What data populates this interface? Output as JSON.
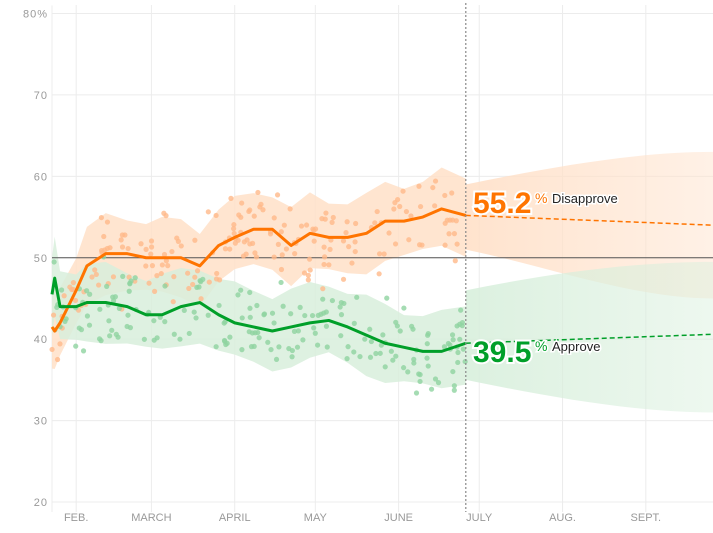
{
  "chart_data": {
    "type": "line",
    "ylim": [
      20,
      80
    ],
    "xlim": [
      "2017-01-23",
      "2017-09-26"
    ],
    "grid": true,
    "y_ticks": [
      "80%",
      "70",
      "60",
      "50",
      "40",
      "30",
      "20"
    ],
    "y_tick_values": [
      80,
      70,
      60,
      50,
      40,
      30,
      20
    ],
    "x_ticks": [
      "FEB.",
      "MARCH",
      "APRIL",
      "MAY",
      "JUNE",
      "JULY",
      "AUG.",
      "SEPT."
    ],
    "x_tick_dates": [
      "2017-02-01",
      "2017-03-01",
      "2017-04-01",
      "2017-05-01",
      "2017-06-01",
      "2017-07-01",
      "2017-08-01",
      "2017-09-01"
    ],
    "today": "2017-06-26",
    "x": [
      "2017-01-23",
      "2017-01-24",
      "2017-01-26",
      "2017-02-01",
      "2017-02-05",
      "2017-02-12",
      "2017-02-20",
      "2017-02-27",
      "2017-03-05",
      "2017-03-12",
      "2017-03-19",
      "2017-03-26",
      "2017-04-01",
      "2017-04-08",
      "2017-04-15",
      "2017-04-22",
      "2017-04-29",
      "2017-05-06",
      "2017-05-13",
      "2017-05-20",
      "2017-05-27",
      "2017-06-03",
      "2017-06-10",
      "2017-06-17",
      "2017-06-26"
    ],
    "series": [
      {
        "name": "Disapprove",
        "color": "#ff7400",
        "values": [
          41.5,
          41,
          42,
          46,
          49,
          50.5,
          50.5,
          50,
          50,
          50,
          49,
          51.5,
          52.5,
          53.5,
          53.5,
          51.5,
          53,
          52.5,
          52.5,
          53,
          54.5,
          54.5,
          55,
          56,
          55.2
        ],
        "band_halfwidth": 4.5,
        "forecast": {
          "end": 54.0,
          "band_start": [
            51,
            59
          ],
          "band_end": [
            45,
            63
          ]
        }
      },
      {
        "name": "Approve",
        "color": "#009f29",
        "values": [
          45.5,
          47.5,
          44,
          44,
          44.5,
          44.5,
          44,
          43,
          43,
          44,
          44.5,
          43,
          42,
          41.5,
          41,
          41.5,
          42,
          42.3,
          41.5,
          40.5,
          39.5,
          39,
          38.5,
          38.5,
          39.5
        ],
        "band_halfwidth": 4.5,
        "forecast": {
          "end": 40.6,
          "band_start": [
            35,
            46
          ],
          "band_end": [
            31,
            49.5
          ]
        }
      }
    ],
    "reference_line": 50,
    "labels": {
      "disapprove": {
        "value": "55.2",
        "unit": "%",
        "text": "Disapprove"
      },
      "approve": {
        "value": "39.5",
        "unit": "%",
        "text": "Approve"
      }
    }
  }
}
